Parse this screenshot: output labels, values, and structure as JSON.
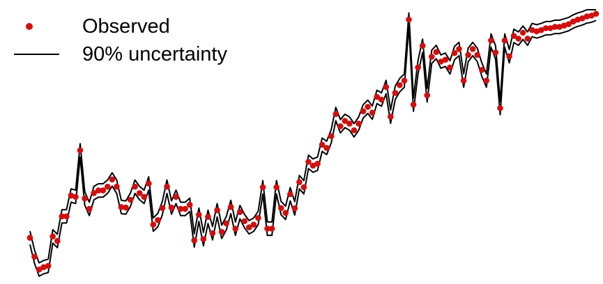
{
  "chart_data": {
    "type": "line",
    "title": "",
    "xlabel": "",
    "ylabel": "",
    "axes_visible": false,
    "grid": false,
    "legend": {
      "placement": "top-left",
      "entries": [
        {
          "label": "Observed",
          "marker": "dot",
          "color": "#d01010"
        },
        {
          "label": "90% uncertainty",
          "marker": "line",
          "color": "#000000"
        }
      ]
    },
    "x": [
      1,
      2,
      3,
      4,
      5,
      6,
      7,
      8,
      9,
      10,
      11,
      12,
      13,
      14,
      15,
      16,
      17,
      18,
      19,
      20,
      21,
      22,
      23,
      24,
      25,
      26,
      27,
      28,
      29,
      30,
      31,
      32,
      33,
      34,
      35,
      36,
      37,
      38,
      39,
      40,
      41,
      42,
      43,
      44,
      45,
      46,
      47,
      48,
      49,
      50,
      51,
      52,
      53,
      54,
      55,
      56,
      57,
      58,
      59,
      60,
      61,
      62,
      63,
      64,
      65,
      66,
      67,
      68,
      69,
      70,
      71,
      72,
      73,
      74,
      75,
      76,
      77,
      78,
      79,
      80,
      81,
      82,
      83,
      84,
      85,
      86,
      87,
      88,
      89,
      90,
      91,
      92,
      93,
      94,
      95,
      96,
      97,
      98,
      99,
      100,
      101,
      102,
      103,
      104,
      105,
      106,
      107,
      108,
      109,
      110,
      111,
      112,
      113,
      114,
      115,
      116,
      117,
      118,
      119,
      120,
      121,
      122,
      123,
      124,
      125
    ],
    "ylim": [
      0,
      100
    ],
    "series": [
      {
        "role": "observed",
        "values": [
          14.7,
          7.6,
          2.8,
          3.7,
          4.2,
          15.2,
          13.5,
          22.7,
          22.7,
          30.5,
          30.0,
          47.4,
          29.4,
          25.5,
          31.4,
          32.4,
          32.4,
          33.8,
          36.5,
          33.8,
          26.2,
          26.0,
          28.9,
          33.8,
          31.4,
          30.0,
          35.0,
          19.6,
          21.3,
          25.8,
          33.8,
          26.0,
          30.0,
          25.5,
          25.5,
          27.0,
          13.7,
          23.3,
          14.2,
          22.5,
          16.4,
          25.0,
          16.9,
          20.1,
          26.2,
          18.1,
          24.3,
          20.9,
          18.6,
          19.6,
          22.1,
          33.6,
          18.1,
          18.1,
          33.6,
          25.8,
          24.0,
          31.0,
          25.7,
          35.5,
          33.6,
          43.1,
          41.7,
          42.4,
          49.5,
          48.3,
          52.7,
          61.0,
          56.4,
          58.4,
          57.4,
          54.9,
          57.4,
          62.0,
          63.7,
          61.5,
          67.4,
          66.4,
          71.1,
          60.0,
          68.9,
          71.8,
          73.5,
          96.3,
          64.5,
          78.4,
          86.5,
          68.0,
          82.4,
          84.2,
          80.6,
          81.3,
          78.4,
          83.8,
          85.3,
          73.5,
          83.1,
          85.3,
          83.1,
          77.5,
          73.5,
          88.5,
          84.0,
          63.2,
          88.5,
          82.6,
          90.2,
          89.2,
          91.4,
          89.2,
          92.4,
          91.9,
          92.4,
          93.1,
          93.1,
          93.6,
          93.6,
          94.1,
          94.6,
          95.6,
          96.3,
          96.8,
          97.5,
          97.8,
          98.5
        ]
      },
      {
        "role": "upper_90",
        "values": [
          17.2,
          10.1,
          5.3,
          6.2,
          6.7,
          17.7,
          16.0,
          25.2,
          25.2,
          33.0,
          32.5,
          49.9,
          31.9,
          28.0,
          33.9,
          34.9,
          34.9,
          36.3,
          39.0,
          36.3,
          28.7,
          28.5,
          31.4,
          36.3,
          33.9,
          32.5,
          37.5,
          22.1,
          23.8,
          28.3,
          36.3,
          28.5,
          32.5,
          28.0,
          28.0,
          29.5,
          16.2,
          25.8,
          16.7,
          25.0,
          18.9,
          27.5,
          19.4,
          22.6,
          28.7,
          20.6,
          26.8,
          23.4,
          21.1,
          22.1,
          24.6,
          36.1,
          20.6,
          20.6,
          36.1,
          28.3,
          26.5,
          33.5,
          28.2,
          38.0,
          36.1,
          45.6,
          44.2,
          44.9,
          52.0,
          50.8,
          55.2,
          63.5,
          58.9,
          60.9,
          59.9,
          57.4,
          59.9,
          64.5,
          66.2,
          64.0,
          69.9,
          68.9,
          73.6,
          62.5,
          71.4,
          74.3,
          76.0,
          98.8,
          67.0,
          80.9,
          89.0,
          70.5,
          84.9,
          86.7,
          83.1,
          83.8,
          80.9,
          86.3,
          87.8,
          76.0,
          85.6,
          87.8,
          85.6,
          80.0,
          76.0,
          91.0,
          86.5,
          65.7,
          91.0,
          85.1,
          92.7,
          91.7,
          93.9,
          91.7,
          94.9,
          94.4,
          94.9,
          95.6,
          95.6,
          96.1,
          96.1,
          96.6,
          97.1,
          98.1,
          98.8,
          99.3,
          100.0,
          100.0,
          100.0
        ]
      },
      {
        "role": "lower_90",
        "values": [
          12.2,
          5.1,
          0.3,
          1.2,
          1.7,
          12.7,
          11.0,
          20.2,
          20.2,
          28.0,
          27.5,
          44.9,
          26.9,
          23.0,
          28.9,
          29.9,
          29.9,
          31.3,
          34.0,
          31.3,
          23.7,
          23.5,
          26.4,
          31.3,
          28.9,
          27.5,
          32.5,
          17.1,
          18.8,
          23.3,
          31.3,
          23.5,
          27.5,
          23.0,
          23.0,
          24.5,
          11.2,
          20.8,
          11.7,
          20.0,
          13.9,
          22.5,
          14.4,
          17.6,
          23.7,
          15.6,
          21.8,
          18.4,
          16.1,
          17.1,
          19.6,
          31.1,
          15.6,
          15.6,
          31.1,
          23.3,
          21.5,
          28.5,
          23.2,
          33.0,
          31.1,
          40.6,
          39.2,
          39.9,
          47.0,
          45.8,
          50.2,
          58.5,
          53.9,
          55.9,
          54.9,
          52.4,
          54.9,
          59.5,
          61.2,
          59.0,
          64.9,
          63.9,
          68.6,
          57.5,
          66.4,
          69.3,
          71.0,
          93.8,
          62.0,
          75.9,
          84.0,
          65.5,
          79.9,
          81.7,
          78.1,
          78.8,
          75.9,
          81.3,
          82.8,
          71.0,
          80.6,
          82.8,
          80.6,
          75.0,
          71.0,
          86.0,
          81.5,
          60.7,
          86.0,
          80.1,
          87.7,
          86.7,
          88.9,
          86.7,
          89.9,
          89.4,
          89.9,
          90.6,
          90.6,
          91.1,
          91.1,
          91.6,
          92.1,
          93.1,
          93.8,
          94.3,
          95.0,
          95.3,
          96.0
        ]
      }
    ]
  }
}
